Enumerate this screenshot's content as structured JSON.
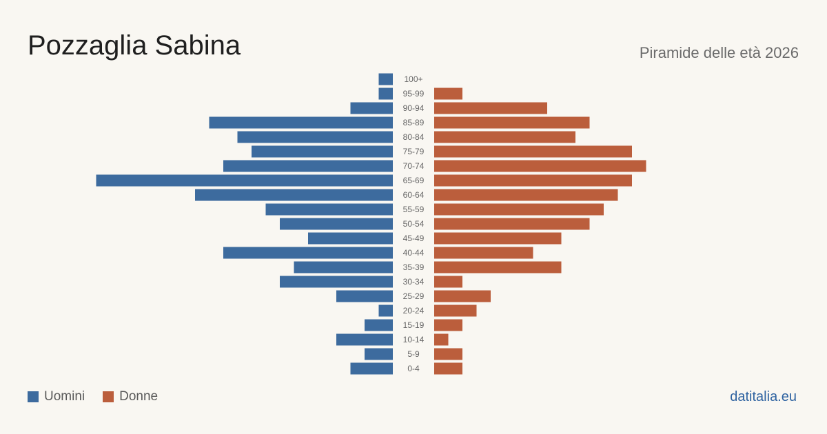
{
  "header": {
    "title": "Pozzaglia Sabina",
    "subtitle": "Piramide delle età 2026"
  },
  "legend": {
    "men": "Uomini",
    "women": "Donne"
  },
  "footer": {
    "source": "datitalia.eu"
  },
  "colors": {
    "men": "#3d6b9e",
    "women": "#bb5e3c",
    "background": "#f9f7f2"
  },
  "chart_data": {
    "type": "bar",
    "orientation": "horizontal-pyramid",
    "categories": [
      "100+",
      "95-99",
      "90-94",
      "85-89",
      "80-84",
      "75-79",
      "70-74",
      "65-69",
      "60-64",
      "55-59",
      "50-54",
      "45-49",
      "40-44",
      "35-39",
      "30-34",
      "25-29",
      "20-24",
      "15-19",
      "10-14",
      "5-9",
      "0-4"
    ],
    "series": [
      {
        "name": "Uomini",
        "values": [
          1,
          1,
          3,
          13,
          11,
          10,
          12,
          21,
          14,
          9,
          8,
          6,
          12,
          7,
          8,
          4,
          1,
          2,
          4,
          2,
          3
        ]
      },
      {
        "name": "Donne",
        "values": [
          0,
          2,
          8,
          11,
          10,
          14,
          15,
          14,
          13,
          12,
          11,
          9,
          7,
          9,
          2,
          4,
          3,
          2,
          1,
          2,
          2
        ]
      }
    ],
    "legend_position": "bottom-left",
    "grid": false
  }
}
